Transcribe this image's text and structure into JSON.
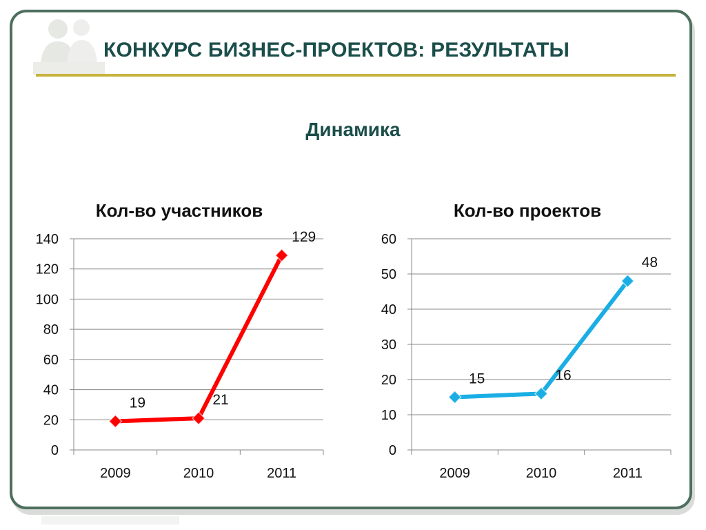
{
  "slide": {
    "title": "КОНКУРС БИЗНЕС-ПРОЕКТОВ: РЕЗУЛЬТАТЫ",
    "subtitle": "Динамика"
  },
  "colors": {
    "frame": "#4e6f5e",
    "title_text": "#1b4e4a",
    "rule": "#c8b33c",
    "participants_line": "#ff0000",
    "projects_line": "#1aaee5"
  },
  "chart_data": [
    {
      "type": "line",
      "title": "Кол-во участников",
      "categories": [
        "2009",
        "2010",
        "2011"
      ],
      "series": [
        {
          "values": [
            19,
            21,
            129
          ],
          "color": "#ff0000",
          "marker": "diamond"
        }
      ],
      "data_labels": [
        "19",
        "21",
        "129"
      ],
      "ylim": [
        0,
        140
      ],
      "yticks": [
        0,
        20,
        40,
        60,
        80,
        100,
        120,
        140
      ],
      "grid": true,
      "legend": "none",
      "xlabel": "",
      "ylabel": ""
    },
    {
      "type": "line",
      "title": "Кол-во проектов",
      "categories": [
        "2009",
        "2010",
        "2011"
      ],
      "series": [
        {
          "values": [
            15,
            16,
            48
          ],
          "color": "#1aaee5",
          "marker": "diamond"
        }
      ],
      "data_labels": [
        "15",
        "16",
        "48"
      ],
      "ylim": [
        0,
        60
      ],
      "yticks": [
        0,
        10,
        20,
        30,
        40,
        50,
        60
      ],
      "grid": true,
      "legend": "none",
      "xlabel": "",
      "ylabel": ""
    }
  ]
}
